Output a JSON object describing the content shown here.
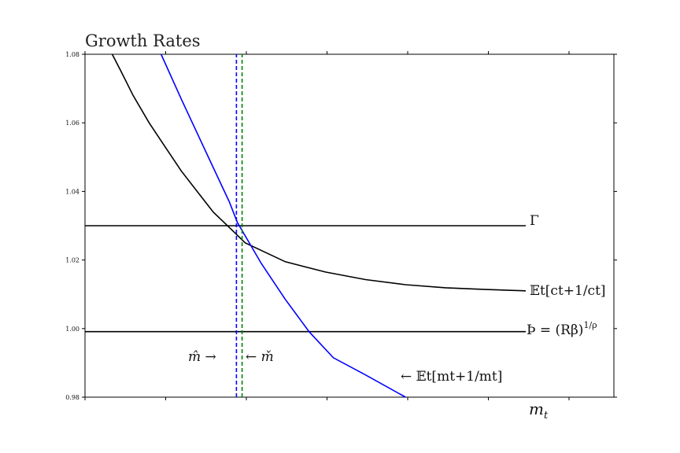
{
  "chart_data": {
    "type": "line",
    "title": "Growth Rates",
    "xlabel": "m_t",
    "ylabel": "",
    "xlim": [
      0,
      6.6
    ],
    "ylim": [
      0.98,
      1.08
    ],
    "yticks": [
      "1.08",
      "1.06",
      "1.04",
      "1.02",
      "1.00",
      "0.98"
    ],
    "xticks_count": 7,
    "grid": false,
    "series": [
      {
        "id": "gamma",
        "name": "Γ",
        "label_text": "Γ",
        "color": "#000000",
        "style": "solid",
        "x": [
          0,
          5.5
        ],
        "y": [
          1.03,
          1.03
        ]
      },
      {
        "id": "thorn",
        "name": "Þ = (Rβ)^{1/ρ}",
        "label_text": "Þ = (Rβ)",
        "label_sup": "1/ρ",
        "color": "#000000",
        "style": "solid",
        "x": [
          0,
          5.5
        ],
        "y": [
          0.9991,
          0.9991
        ]
      },
      {
        "id": "cons_growth",
        "name": "E_t[c_{t+1}/c_t]",
        "label_text": "𝔼t[ct+1/ct]",
        "color": "#000000",
        "style": "solid",
        "x": [
          0.34,
          0.45,
          0.6,
          0.8,
          1.0,
          1.2,
          1.5,
          1.6,
          1.8,
          2.0,
          2.5,
          3.0,
          3.5,
          4.0,
          4.5,
          5.0,
          5.5
        ],
        "y": [
          1.08,
          1.075,
          1.068,
          1.06,
          1.053,
          1.046,
          1.037,
          1.034,
          1.0295,
          1.025,
          1.0195,
          1.0165,
          1.0143,
          1.0128,
          1.0119,
          1.0114,
          1.011
        ]
      },
      {
        "id": "mkt_growth",
        "name": "E_t[m_{t+1}/m_t]",
        "label_text": "← 𝔼t[mt+1/mt]",
        "color": "#0000ff",
        "style": "solid",
        "x": [
          0.95,
          1.2,
          1.5,
          1.8,
          1.9,
          2.2,
          2.5,
          2.8,
          3.1,
          3.5,
          4.0
        ],
        "y": [
          1.08,
          1.067,
          1.052,
          1.037,
          1.031,
          1.019,
          1.0085,
          0.999,
          0.9915,
          0.9865,
          0.98
        ]
      },
      {
        "id": "m_hat",
        "name": "m̂",
        "label_text": "m̂ →",
        "color": "#0000ff",
        "style": "dashed",
        "x": [
          1.89,
          1.89
        ],
        "y": [
          0.98,
          1.08
        ]
      },
      {
        "id": "m_check",
        "name": "m̌",
        "label_text": "← m̌",
        "color": "#008000",
        "style": "dashed",
        "x": [
          1.96,
          1.96
        ],
        "y": [
          0.98,
          1.08
        ]
      }
    ]
  }
}
